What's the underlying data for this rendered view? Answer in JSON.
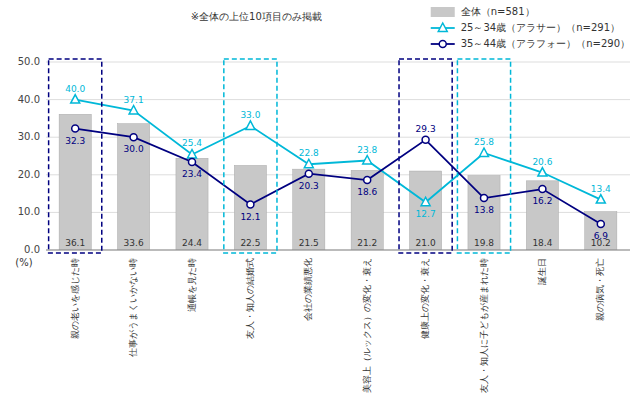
{
  "chart_data": {
    "type": "bar",
    "categories": [
      "親の老いを感じた時",
      "仕事がうまくいかない時",
      "通帳を見た時",
      "友人・知人の結婚式",
      "会社の業績悪化",
      "美容上（ルックス）の変化・衰え",
      "健康上の変化・衰え",
      "友人・知人に子どもが産まれた時",
      "誕生日",
      "親の病気・死亡"
    ],
    "series": [
      {
        "name": "全体（n=581）",
        "type": "bar",
        "color": "#c8c8c8",
        "values": [
          36.1,
          33.6,
          24.4,
          22.5,
          21.5,
          21.2,
          21.0,
          19.8,
          18.4,
          10.2
        ],
        "value_labels": [
          "36.1",
          "33.6",
          "24.4",
          "22.5",
          "21.5",
          "21.2",
          "21.0",
          "19.8",
          "18.4",
          "10.2"
        ]
      },
      {
        "name": "25～34歳（アラサー）（n=291）",
        "type": "line",
        "color": "#00b8d8",
        "marker": "triangle",
        "values": [
          40.0,
          37.1,
          25.4,
          33.0,
          22.8,
          23.8,
          12.7,
          25.8,
          20.6,
          13.4
        ],
        "value_labels": [
          "40.0",
          "37.1",
          "25.4",
          "33.0",
          "22.8",
          "23.8",
          "12.7",
          "25.8",
          "20.6",
          "13.4"
        ]
      },
      {
        "name": "35～44歳（アラフォー）（n=290）",
        "type": "line",
        "color": "#000080",
        "marker": "circle",
        "values": [
          32.3,
          30.0,
          23.4,
          12.1,
          20.3,
          18.6,
          29.3,
          13.8,
          16.2,
          6.9
        ],
        "value_labels": [
          "32.3",
          "30.0",
          "23.4",
          "12.1",
          "20.3",
          "18.6",
          "29.3",
          "13.8",
          "16.2",
          "6.9"
        ]
      }
    ],
    "y_label": "(%)",
    "annotations": [
      "※全体の上位10項目のみ掲載"
    ],
    "highlights": [
      {
        "category": "親の老いを感じた時",
        "color": "#000080"
      },
      {
        "category": "友人・知人の結婚式",
        "color": "#00b8d8"
      },
      {
        "category": "健康上の変化・衰え",
        "color": "#000080"
      },
      {
        "category": "友人・知人に子どもが産まれた時",
        "color": "#00b8d8"
      }
    ],
    "ylim": [
      0.0,
      50.0
    ],
    "yticks": [
      {
        "value": 0,
        "label": "0.0"
      },
      {
        "value": 10,
        "label": "10.0"
      },
      {
        "value": 20,
        "label": "20.0"
      },
      {
        "value": 30,
        "label": "30.0"
      },
      {
        "value": 40,
        "label": "40.0"
      },
      {
        "value": 50,
        "label": "50.0"
      }
    ],
    "grid": true,
    "legend": "upper right",
    "data_labels": true
  }
}
